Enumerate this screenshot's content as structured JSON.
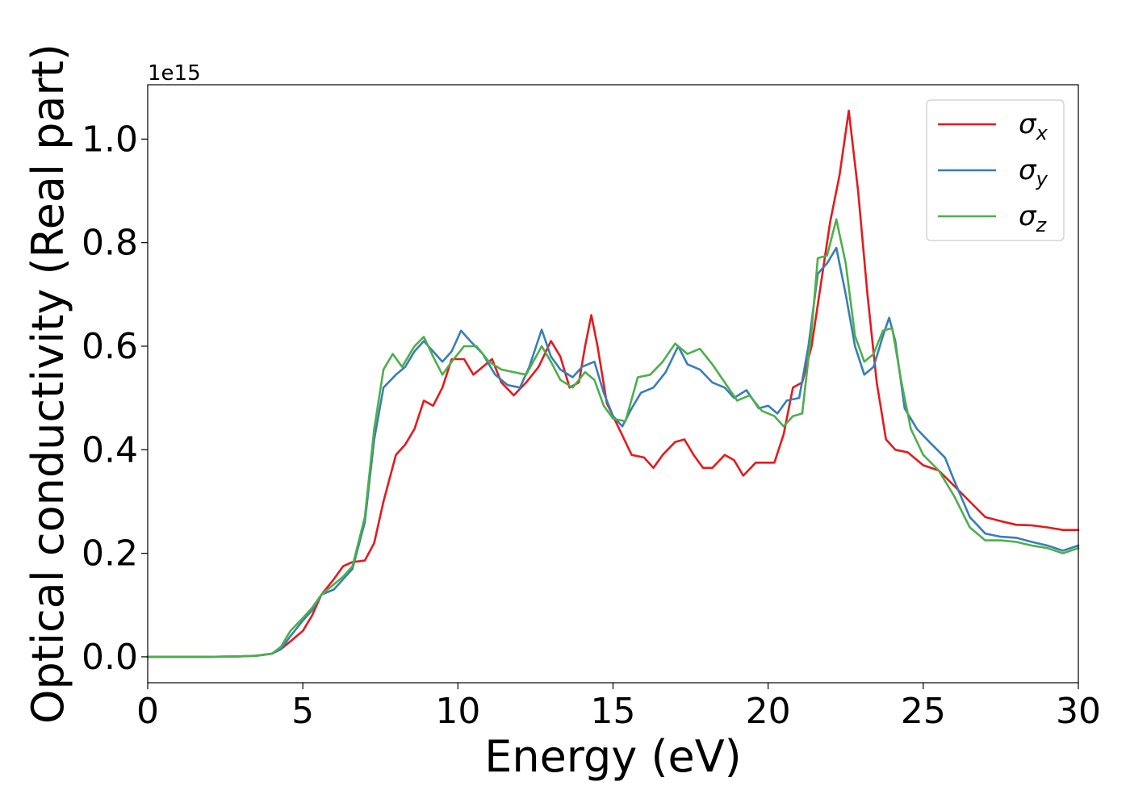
{
  "chart_data": {
    "type": "line",
    "xlabel": "Energy (eV)",
    "ylabel": "Optical conductivity (Real part)",
    "offset_text": "1e15",
    "xlim": [
      0,
      30
    ],
    "ylim": [
      -0.05,
      1.105
    ],
    "x_ticks": [
      0,
      5,
      10,
      15,
      20,
      25,
      30
    ],
    "y_ticks": [
      0.0,
      0.2,
      0.4,
      0.6,
      0.8,
      1.0
    ],
    "x_tick_labels": [
      "0",
      "5",
      "10",
      "15",
      "20",
      "25",
      "30"
    ],
    "y_tick_labels": [
      "0.0",
      "0.2",
      "0.4",
      "0.6",
      "0.8",
      "1.0"
    ],
    "grid": false,
    "legend_position": "top-right",
    "series": [
      {
        "name": "σx",
        "legend_symbol": "σ",
        "legend_sub": "x",
        "color": "#e41a1c",
        "points": [
          [
            0,
            0
          ],
          [
            2,
            0
          ],
          [
            3,
            0.001
          ],
          [
            3.5,
            0.002
          ],
          [
            4,
            0.006
          ],
          [
            4.3,
            0.015
          ],
          [
            4.6,
            0.03
          ],
          [
            5,
            0.05
          ],
          [
            5.3,
            0.08
          ],
          [
            5.6,
            0.12
          ],
          [
            6,
            0.15
          ],
          [
            6.3,
            0.175
          ],
          [
            6.6,
            0.183
          ],
          [
            7,
            0.186
          ],
          [
            7.3,
            0.22
          ],
          [
            7.6,
            0.3
          ],
          [
            8,
            0.39
          ],
          [
            8.3,
            0.41
          ],
          [
            8.6,
            0.44
          ],
          [
            8.9,
            0.495
          ],
          [
            9.2,
            0.485
          ],
          [
            9.5,
            0.52
          ],
          [
            9.8,
            0.575
          ],
          [
            10.2,
            0.575
          ],
          [
            10.5,
            0.545
          ],
          [
            10.8,
            0.56
          ],
          [
            11.1,
            0.575
          ],
          [
            11.4,
            0.53
          ],
          [
            11.8,
            0.505
          ],
          [
            12.2,
            0.53
          ],
          [
            12.6,
            0.56
          ],
          [
            13,
            0.61
          ],
          [
            13.3,
            0.58
          ],
          [
            13.6,
            0.52
          ],
          [
            13.9,
            0.53
          ],
          [
            14.1,
            0.6
          ],
          [
            14.3,
            0.66
          ],
          [
            14.5,
            0.6
          ],
          [
            14.8,
            0.49
          ],
          [
            15.2,
            0.44
          ],
          [
            15.6,
            0.39
          ],
          [
            16,
            0.385
          ],
          [
            16.3,
            0.365
          ],
          [
            16.6,
            0.39
          ],
          [
            17,
            0.415
          ],
          [
            17.3,
            0.42
          ],
          [
            17.6,
            0.39
          ],
          [
            17.9,
            0.365
          ],
          [
            18.2,
            0.365
          ],
          [
            18.6,
            0.39
          ],
          [
            18.9,
            0.38
          ],
          [
            19.2,
            0.35
          ],
          [
            19.6,
            0.375
          ],
          [
            20.2,
            0.375
          ],
          [
            20.5,
            0.43
          ],
          [
            20.8,
            0.52
          ],
          [
            21.1,
            0.53
          ],
          [
            21.4,
            0.6
          ],
          [
            21.7,
            0.72
          ],
          [
            22,
            0.84
          ],
          [
            22.3,
            0.93
          ],
          [
            22.6,
            1.055
          ],
          [
            22.9,
            0.9
          ],
          [
            23.2,
            0.7
          ],
          [
            23.5,
            0.53
          ],
          [
            23.8,
            0.42
          ],
          [
            24.1,
            0.4
          ],
          [
            24.5,
            0.395
          ],
          [
            25,
            0.37
          ],
          [
            25.5,
            0.36
          ],
          [
            26,
            0.33
          ],
          [
            26.5,
            0.3
          ],
          [
            27,
            0.27
          ],
          [
            27.5,
            0.262
          ],
          [
            28,
            0.255
          ],
          [
            28.5,
            0.254
          ],
          [
            29,
            0.25
          ],
          [
            29.5,
            0.245
          ],
          [
            30,
            0.245
          ]
        ]
      },
      {
        "name": "σy",
        "legend_symbol": "σ",
        "legend_sub": "y",
        "color": "#377eb8",
        "points": [
          [
            0,
            0
          ],
          [
            2,
            0
          ],
          [
            3,
            0.001
          ],
          [
            3.5,
            0.002
          ],
          [
            4,
            0.006
          ],
          [
            4.3,
            0.015
          ],
          [
            4.6,
            0.04
          ],
          [
            5,
            0.07
          ],
          [
            5.3,
            0.09
          ],
          [
            5.6,
            0.12
          ],
          [
            6,
            0.13
          ],
          [
            6.3,
            0.15
          ],
          [
            6.6,
            0.17
          ],
          [
            7,
            0.26
          ],
          [
            7.3,
            0.42
          ],
          [
            7.6,
            0.52
          ],
          [
            8,
            0.545
          ],
          [
            8.3,
            0.56
          ],
          [
            8.6,
            0.59
          ],
          [
            8.9,
            0.61
          ],
          [
            9.2,
            0.59
          ],
          [
            9.5,
            0.57
          ],
          [
            9.8,
            0.59
          ],
          [
            10.1,
            0.63
          ],
          [
            10.4,
            0.61
          ],
          [
            10.8,
            0.585
          ],
          [
            11.2,
            0.545
          ],
          [
            11.6,
            0.525
          ],
          [
            12,
            0.52
          ],
          [
            12.3,
            0.56
          ],
          [
            12.7,
            0.632
          ],
          [
            13,
            0.58
          ],
          [
            13.3,
            0.555
          ],
          [
            13.7,
            0.54
          ],
          [
            14,
            0.56
          ],
          [
            14.4,
            0.57
          ],
          [
            14.7,
            0.51
          ],
          [
            15,
            0.465
          ],
          [
            15.3,
            0.445
          ],
          [
            15.6,
            0.48
          ],
          [
            15.9,
            0.51
          ],
          [
            16.3,
            0.52
          ],
          [
            16.7,
            0.55
          ],
          [
            17.1,
            0.6
          ],
          [
            17.4,
            0.565
          ],
          [
            17.8,
            0.555
          ],
          [
            18.2,
            0.53
          ],
          [
            18.6,
            0.52
          ],
          [
            18.9,
            0.5
          ],
          [
            19.3,
            0.515
          ],
          [
            19.7,
            0.48
          ],
          [
            20,
            0.485
          ],
          [
            20.3,
            0.47
          ],
          [
            20.6,
            0.495
          ],
          [
            21,
            0.5
          ],
          [
            21.3,
            0.6
          ],
          [
            21.6,
            0.74
          ],
          [
            21.9,
            0.76
          ],
          [
            22.2,
            0.79
          ],
          [
            22.5,
            0.7
          ],
          [
            22.8,
            0.6
          ],
          [
            23.1,
            0.545
          ],
          [
            23.4,
            0.56
          ],
          [
            23.7,
            0.62
          ],
          [
            23.9,
            0.655
          ],
          [
            24.1,
            0.61
          ],
          [
            24.4,
            0.48
          ],
          [
            24.8,
            0.44
          ],
          [
            25.2,
            0.415
          ],
          [
            25.7,
            0.385
          ],
          [
            26,
            0.34
          ],
          [
            26.5,
            0.27
          ],
          [
            27,
            0.238
          ],
          [
            27.5,
            0.232
          ],
          [
            28,
            0.23
          ],
          [
            28.5,
            0.222
          ],
          [
            29,
            0.215
          ],
          [
            29.5,
            0.205
          ],
          [
            30,
            0.215
          ]
        ]
      },
      {
        "name": "σz",
        "legend_symbol": "σ",
        "legend_sub": "z",
        "color": "#4daf4a",
        "points": [
          [
            0,
            0
          ],
          [
            2,
            0
          ],
          [
            3,
            0.001
          ],
          [
            3.5,
            0.002
          ],
          [
            4,
            0.006
          ],
          [
            4.3,
            0.02
          ],
          [
            4.6,
            0.05
          ],
          [
            5,
            0.075
          ],
          [
            5.3,
            0.095
          ],
          [
            5.6,
            0.12
          ],
          [
            6,
            0.14
          ],
          [
            6.3,
            0.155
          ],
          [
            6.6,
            0.175
          ],
          [
            7,
            0.27
          ],
          [
            7.3,
            0.44
          ],
          [
            7.6,
            0.555
          ],
          [
            7.9,
            0.585
          ],
          [
            8.2,
            0.56
          ],
          [
            8.6,
            0.6
          ],
          [
            8.9,
            0.618
          ],
          [
            9.2,
            0.58
          ],
          [
            9.5,
            0.545
          ],
          [
            9.8,
            0.57
          ],
          [
            10.2,
            0.6
          ],
          [
            10.6,
            0.6
          ],
          [
            11,
            0.57
          ],
          [
            11.4,
            0.555
          ],
          [
            11.8,
            0.55
          ],
          [
            12.2,
            0.545
          ],
          [
            12.7,
            0.6
          ],
          [
            13,
            0.57
          ],
          [
            13.3,
            0.535
          ],
          [
            13.7,
            0.52
          ],
          [
            14.1,
            0.55
          ],
          [
            14.4,
            0.535
          ],
          [
            14.7,
            0.485
          ],
          [
            15,
            0.46
          ],
          [
            15.4,
            0.455
          ],
          [
            15.8,
            0.54
          ],
          [
            16.2,
            0.545
          ],
          [
            16.6,
            0.57
          ],
          [
            17,
            0.605
          ],
          [
            17.4,
            0.585
          ],
          [
            17.8,
            0.595
          ],
          [
            18.2,
            0.565
          ],
          [
            18.6,
            0.53
          ],
          [
            19,
            0.495
          ],
          [
            19.4,
            0.505
          ],
          [
            19.8,
            0.475
          ],
          [
            20.2,
            0.465
          ],
          [
            20.5,
            0.445
          ],
          [
            20.8,
            0.465
          ],
          [
            21.1,
            0.47
          ],
          [
            21.4,
            0.63
          ],
          [
            21.6,
            0.77
          ],
          [
            21.9,
            0.775
          ],
          [
            22.2,
            0.845
          ],
          [
            22.5,
            0.76
          ],
          [
            22.8,
            0.62
          ],
          [
            23.1,
            0.57
          ],
          [
            23.4,
            0.585
          ],
          [
            23.7,
            0.63
          ],
          [
            24,
            0.635
          ],
          [
            24.3,
            0.53
          ],
          [
            24.6,
            0.44
          ],
          [
            25,
            0.39
          ],
          [
            25.5,
            0.36
          ],
          [
            26,
            0.31
          ],
          [
            26.5,
            0.25
          ],
          [
            27,
            0.225
          ],
          [
            27.5,
            0.225
          ],
          [
            28,
            0.222
          ],
          [
            28.5,
            0.215
          ],
          [
            29,
            0.21
          ],
          [
            29.5,
            0.2
          ],
          [
            30,
            0.21
          ]
        ]
      }
    ]
  }
}
